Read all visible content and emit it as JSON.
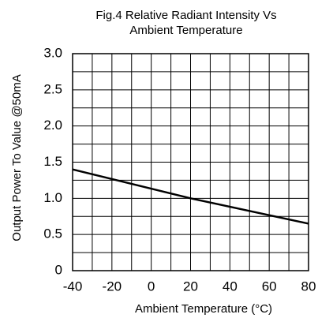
{
  "chart_data": {
    "type": "line",
    "title": [
      "Fig.4 Relative Radiant Intensity Vs",
      "Ambient Temperature"
    ],
    "xlabel": "Ambient Temperature (°C)",
    "ylabel": "Output Power To Value @50mA",
    "x": [
      -40,
      20,
      80
    ],
    "series": [
      {
        "color": "#000000",
        "values": [
          1.4,
          1.0,
          0.65
        ]
      }
    ],
    "xlim": [
      -40,
      80
    ],
    "xticks": [
      -40,
      -20,
      0,
      20,
      40,
      60,
      80
    ],
    "ylim": [
      0,
      3
    ],
    "yticks": [
      0,
      0.5,
      {
        "value": 1,
        "label": "1.0"
      },
      1.5,
      {
        "value": 2,
        "label": "2.0"
      },
      2.5,
      {
        "value": 3,
        "label": "3.0"
      }
    ],
    "grid": true
  }
}
